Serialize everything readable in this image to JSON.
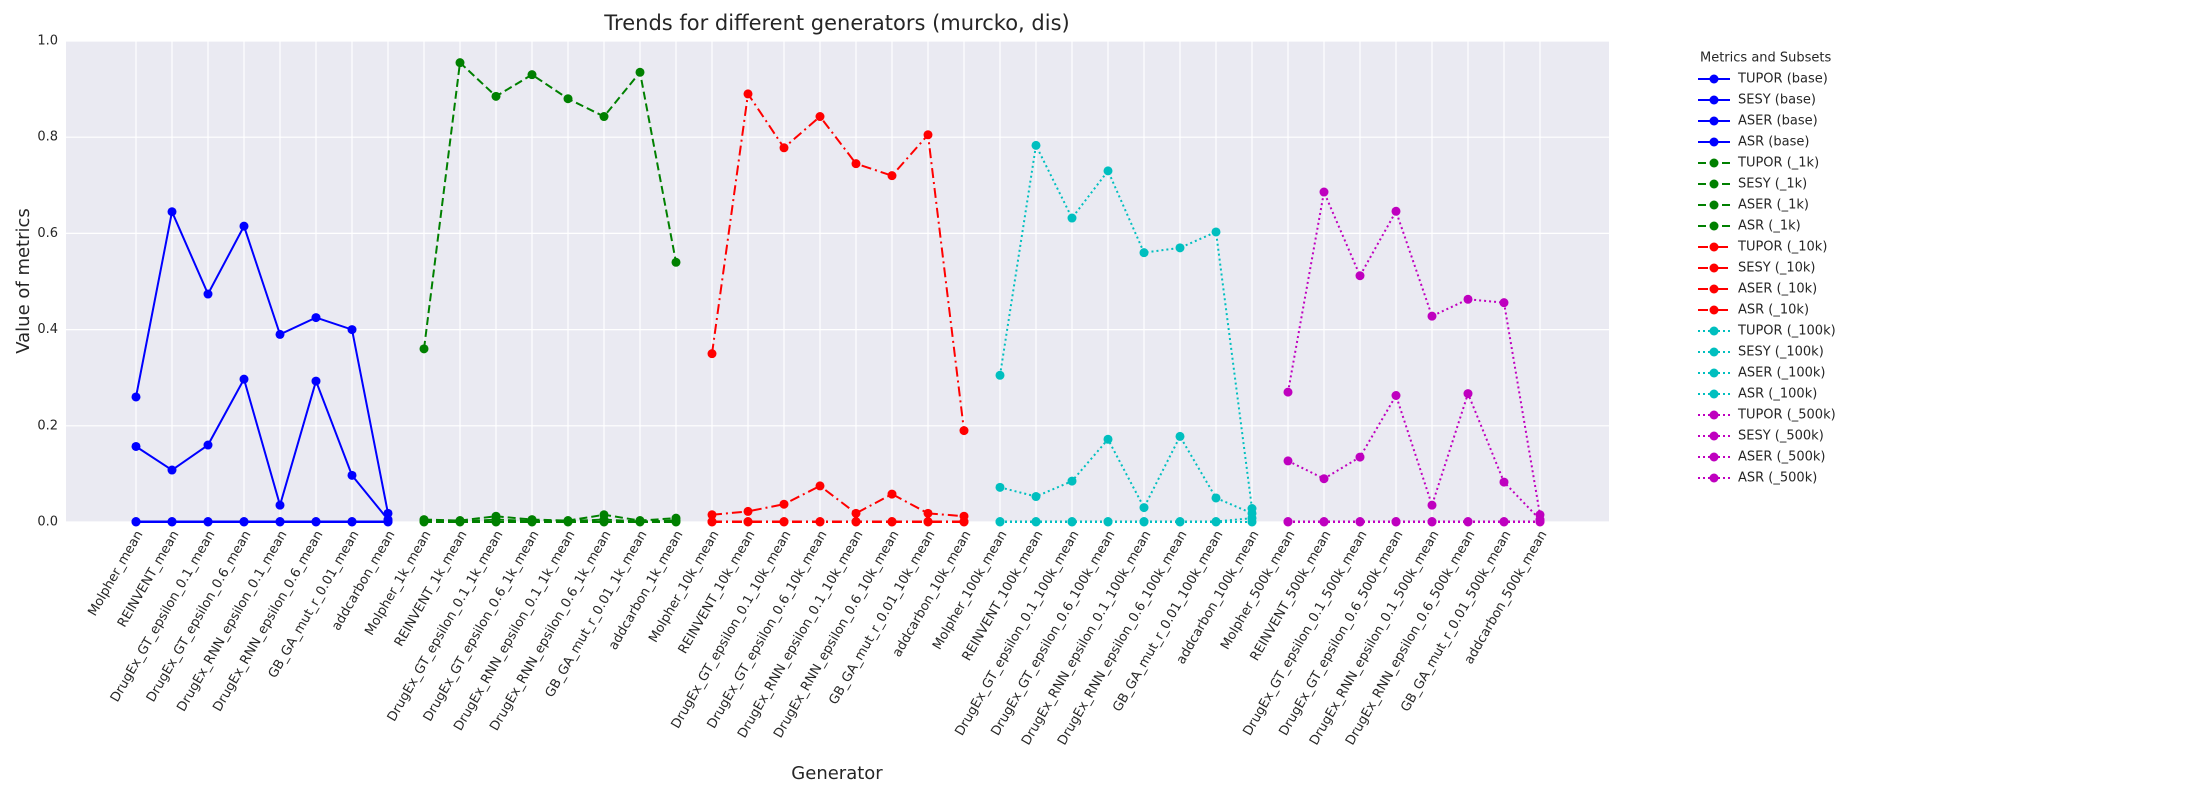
{
  "chart_data": {
    "type": "line",
    "title": "Trends for different generators (murcko, dis)",
    "x_label": "Generator",
    "y_label": "Value of metrics",
    "legend_title": "Metrics and Subsets",
    "legend": "outside right",
    "grid": true,
    "categories": [
      "Molpher_mean",
      "REINVENT_mean",
      "DrugEx_GT_epsilon_0.1_mean",
      "DrugEx_GT_epsilon_0.6_mean",
      "DrugEx_RNN_epsilon_0.1_mean",
      "DrugEx_RNN_epsilon_0.6_mean",
      "GB_GA_mut_r_0.01_mean",
      "addcarbon_mean",
      "Molpher_1k_mean",
      "REINVENT_1k_mean",
      "DrugEx_GT_epsilon_0.1_1k_mean",
      "DrugEx_GT_epsilon_0.6_1k_mean",
      "DrugEx_RNN_epsilon_0.1_1k_mean",
      "DrugEx_RNN_epsilon_0.6_1k_mean",
      "GB_GA_mut_r_0.01_1k_mean",
      "addcarbon_1k_mean",
      "Molpher_10k_mean",
      "REINVENT_10k_mean",
      "DrugEx_GT_epsilon_0.1_10k_mean",
      "DrugEx_GT_epsilon_0.6_10k_mean",
      "DrugEx_RNN_epsilon_0.1_10k_mean",
      "DrugEx_RNN_epsilon_0.6_10k_mean",
      "GB_GA_mut_r_0.01_10k_mean",
      "addcarbon_10k_mean",
      "Molpher_100k_mean",
      "REINVENT_100k_mean",
      "DrugEx_GT_epsilon_0.1_100k_mean",
      "DrugEx_GT_epsilon_0.6_100k_mean",
      "DrugEx_RNN_epsilon_0.1_100k_mean",
      "DrugEx_RNN_epsilon_0.6_100k_mean",
      "GB_GA_mut_r_0.01_100k_mean",
      "addcarbon_100k_mean",
      "Molpher_500k_mean",
      "REINVENT_500k_mean",
      "DrugEx_GT_epsilon_0.1_500k_mean",
      "DrugEx_GT_epsilon_0.6_500k_mean",
      "DrugEx_RNN_epsilon_0.1_500k_mean",
      "DrugEx_RNN_epsilon_0.6_500k_mean",
      "GB_GA_mut_r_0.01_500k_mean",
      "addcarbon_500k_mean"
    ],
    "ylim": [
      0,
      1
    ],
    "yticks": [
      {
        "value": 0,
        "label": "0.0"
      },
      0.2,
      0.4,
      0.6,
      0.8,
      {
        "value": 1,
        "label": "1.0"
      }
    ],
    "series": [
      {
        "name": "TUPOR (base)",
        "color": "#0000ff",
        "linestyle": "solid",
        "values": [
          0.26,
          0.645,
          0.474,
          0.615,
          0.39,
          0.425,
          0.4,
          0.018,
          null,
          null,
          null,
          null,
          null,
          null,
          null,
          null,
          null,
          null,
          null,
          null,
          null,
          null,
          null,
          null,
          null,
          null,
          null,
          null,
          null,
          null,
          null,
          null,
          null,
          null,
          null,
          null,
          null,
          null,
          null,
          null
        ]
      },
      {
        "name": "SESY (base)",
        "color": "#0000ff",
        "linestyle": "solid",
        "values": [
          0.157,
          0.108,
          0.16,
          0.297,
          0.035,
          0.293,
          0.097,
          0.005,
          null,
          null,
          null,
          null,
          null,
          null,
          null,
          null,
          null,
          null,
          null,
          null,
          null,
          null,
          null,
          null,
          null,
          null,
          null,
          null,
          null,
          null,
          null,
          null,
          null,
          null,
          null,
          null,
          null,
          null,
          null,
          null
        ]
      },
      {
        "name": "ASER (base)",
        "color": "#0000ff",
        "linestyle": "solid",
        "values": [
          0.001,
          0.001,
          0.001,
          0.001,
          0.001,
          0.001,
          0.001,
          0.001,
          null,
          null,
          null,
          null,
          null,
          null,
          null,
          null,
          null,
          null,
          null,
          null,
          null,
          null,
          null,
          null,
          null,
          null,
          null,
          null,
          null,
          null,
          null,
          null,
          null,
          null,
          null,
          null,
          null,
          null,
          null,
          null
        ]
      },
      {
        "name": "ASR (base)",
        "color": "#0000ff",
        "linestyle": "solid",
        "values": [
          0,
          0,
          0,
          0,
          0,
          0,
          0,
          0,
          null,
          null,
          null,
          null,
          null,
          null,
          null,
          null,
          null,
          null,
          null,
          null,
          null,
          null,
          null,
          null,
          null,
          null,
          null,
          null,
          null,
          null,
          null,
          null,
          null,
          null,
          null,
          null,
          null,
          null,
          null,
          null
        ]
      },
      {
        "name": "TUPOR (_1k)",
        "color": "#008000",
        "linestyle": "dashed",
        "values": [
          null,
          null,
          null,
          null,
          null,
          null,
          null,
          null,
          0.36,
          0.955,
          0.885,
          0.93,
          0.88,
          0.843,
          0.935,
          0.54,
          null,
          null,
          null,
          null,
          null,
          null,
          null,
          null,
          null,
          null,
          null,
          null,
          null,
          null,
          null,
          null,
          null,
          null,
          null,
          null,
          null,
          null,
          null,
          null
        ]
      },
      {
        "name": "SESY (_1k)",
        "color": "#008000",
        "linestyle": "dashed",
        "values": [
          null,
          null,
          null,
          null,
          null,
          null,
          null,
          null,
          0.005,
          0.003,
          0.012,
          0.005,
          0.003,
          0.015,
          0.003,
          0.008,
          null,
          null,
          null,
          null,
          null,
          null,
          null,
          null,
          null,
          null,
          null,
          null,
          null,
          null,
          null,
          null,
          null,
          null,
          null,
          null,
          null,
          null,
          null,
          null
        ]
      },
      {
        "name": "ASER (_1k)",
        "color": "#008000",
        "linestyle": "dashed",
        "values": [
          null,
          null,
          null,
          null,
          null,
          null,
          null,
          null,
          0.002,
          0.001,
          0.005,
          0.002,
          0.002,
          0.005,
          0.001,
          0.003,
          null,
          null,
          null,
          null,
          null,
          null,
          null,
          null,
          null,
          null,
          null,
          null,
          null,
          null,
          null,
          null,
          null,
          null,
          null,
          null,
          null,
          null,
          null,
          null
        ]
      },
      {
        "name": "ASR (_1k)",
        "color": "#008000",
        "linestyle": "dashed",
        "values": [
          null,
          null,
          null,
          null,
          null,
          null,
          null,
          null,
          0,
          0,
          0,
          0,
          0,
          0,
          0,
          0,
          null,
          null,
          null,
          null,
          null,
          null,
          null,
          null,
          null,
          null,
          null,
          null,
          null,
          null,
          null,
          null,
          null,
          null,
          null,
          null,
          null,
          null,
          null,
          null
        ]
      },
      {
        "name": "TUPOR (_10k)",
        "color": "#ff0000",
        "linestyle": "dashdot",
        "values": [
          null,
          null,
          null,
          null,
          null,
          null,
          null,
          null,
          null,
          null,
          null,
          null,
          null,
          null,
          null,
          null,
          0.35,
          0.89,
          0.778,
          0.843,
          0.745,
          0.72,
          0.805,
          0.19,
          null,
          null,
          null,
          null,
          null,
          null,
          null,
          null,
          null,
          null,
          null,
          null,
          null,
          null,
          null,
          null
        ]
      },
      {
        "name": "SESY (_10k)",
        "color": "#ff0000",
        "linestyle": "dashdot",
        "values": [
          null,
          null,
          null,
          null,
          null,
          null,
          null,
          null,
          null,
          null,
          null,
          null,
          null,
          null,
          null,
          null,
          0.015,
          0.022,
          0.037,
          0.075,
          0.018,
          0.058,
          0.018,
          0.012,
          null,
          null,
          null,
          null,
          null,
          null,
          null,
          null,
          null,
          null,
          null,
          null,
          null,
          null,
          null,
          null
        ]
      },
      {
        "name": "ASER (_10k)",
        "color": "#ff0000",
        "linestyle": "dashdot",
        "values": [
          null,
          null,
          null,
          null,
          null,
          null,
          null,
          null,
          null,
          null,
          null,
          null,
          null,
          null,
          null,
          null,
          0.001,
          0.001,
          0.001,
          0.001,
          0.001,
          0.001,
          0.001,
          0.001,
          null,
          null,
          null,
          null,
          null,
          null,
          null,
          null,
          null,
          null,
          null,
          null,
          null,
          null,
          null,
          null
        ]
      },
      {
        "name": "ASR (_10k)",
        "color": "#ff0000",
        "linestyle": "dashdot",
        "values": [
          null,
          null,
          null,
          null,
          null,
          null,
          null,
          null,
          null,
          null,
          null,
          null,
          null,
          null,
          null,
          null,
          0,
          0,
          0,
          0,
          0,
          0,
          0,
          0,
          null,
          null,
          null,
          null,
          null,
          null,
          null,
          null,
          null,
          null,
          null,
          null,
          null,
          null,
          null,
          null
        ]
      },
      {
        "name": "TUPOR (_100k)",
        "color": "#00bfbf",
        "linestyle": "dotted",
        "values": [
          null,
          null,
          null,
          null,
          null,
          null,
          null,
          null,
          null,
          null,
          null,
          null,
          null,
          null,
          null,
          null,
          null,
          null,
          null,
          null,
          null,
          null,
          null,
          null,
          0.305,
          0.783,
          0.632,
          0.73,
          0.56,
          0.57,
          0.603,
          0.028,
          null,
          null,
          null,
          null,
          null,
          null,
          null,
          null
        ]
      },
      {
        "name": "SESY (_100k)",
        "color": "#00bfbf",
        "linestyle": "dotted",
        "values": [
          null,
          null,
          null,
          null,
          null,
          null,
          null,
          null,
          null,
          null,
          null,
          null,
          null,
          null,
          null,
          null,
          null,
          null,
          null,
          null,
          null,
          null,
          null,
          null,
          0.072,
          0.053,
          0.085,
          0.172,
          0.03,
          0.178,
          0.05,
          0.018,
          null,
          null,
          null,
          null,
          null,
          null,
          null,
          null
        ]
      },
      {
        "name": "ASER (_100k)",
        "color": "#00bfbf",
        "linestyle": "dotted",
        "values": [
          null,
          null,
          null,
          null,
          null,
          null,
          null,
          null,
          null,
          null,
          null,
          null,
          null,
          null,
          null,
          null,
          null,
          null,
          null,
          null,
          null,
          null,
          null,
          null,
          0.001,
          0.001,
          0.001,
          0.001,
          0.001,
          0.001,
          0.001,
          0.008,
          null,
          null,
          null,
          null,
          null,
          null,
          null,
          null
        ]
      },
      {
        "name": "ASR (_100k)",
        "color": "#00bfbf",
        "linestyle": "dotted",
        "values": [
          null,
          null,
          null,
          null,
          null,
          null,
          null,
          null,
          null,
          null,
          null,
          null,
          null,
          null,
          null,
          null,
          null,
          null,
          null,
          null,
          null,
          null,
          null,
          null,
          0,
          0,
          0,
          0,
          0,
          0,
          0,
          0,
          null,
          null,
          null,
          null,
          null,
          null,
          null,
          null
        ]
      },
      {
        "name": "TUPOR (_500k)",
        "color": "#bf00bf",
        "linestyle": "dotted",
        "values": [
          null,
          null,
          null,
          null,
          null,
          null,
          null,
          null,
          null,
          null,
          null,
          null,
          null,
          null,
          null,
          null,
          null,
          null,
          null,
          null,
          null,
          null,
          null,
          null,
          null,
          null,
          null,
          null,
          null,
          null,
          null,
          null,
          0.27,
          0.686,
          0.512,
          0.646,
          0.428,
          0.463,
          0.456,
          0.015
        ]
      },
      {
        "name": "SESY (_500k)",
        "color": "#bf00bf",
        "linestyle": "dotted",
        "values": [
          null,
          null,
          null,
          null,
          null,
          null,
          null,
          null,
          null,
          null,
          null,
          null,
          null,
          null,
          null,
          null,
          null,
          null,
          null,
          null,
          null,
          null,
          null,
          null,
          null,
          null,
          null,
          null,
          null,
          null,
          null,
          null,
          0.127,
          0.09,
          0.135,
          0.263,
          0.035,
          0.267,
          0.083,
          0.005
        ]
      },
      {
        "name": "ASER (_500k)",
        "color": "#bf00bf",
        "linestyle": "dotted",
        "values": [
          null,
          null,
          null,
          null,
          null,
          null,
          null,
          null,
          null,
          null,
          null,
          null,
          null,
          null,
          null,
          null,
          null,
          null,
          null,
          null,
          null,
          null,
          null,
          null,
          null,
          null,
          null,
          null,
          null,
          null,
          null,
          null,
          0.001,
          0.001,
          0.001,
          0.001,
          0.001,
          0.001,
          0.001,
          0.001
        ]
      },
      {
        "name": "ASR (_500k)",
        "color": "#bf00bf",
        "linestyle": "dotted",
        "values": [
          null,
          null,
          null,
          null,
          null,
          null,
          null,
          null,
          null,
          null,
          null,
          null,
          null,
          null,
          null,
          null,
          null,
          null,
          null,
          null,
          null,
          null,
          null,
          null,
          null,
          null,
          null,
          null,
          null,
          null,
          null,
          null,
          0,
          0,
          0,
          0,
          0,
          0,
          0,
          0
        ]
      }
    ]
  }
}
